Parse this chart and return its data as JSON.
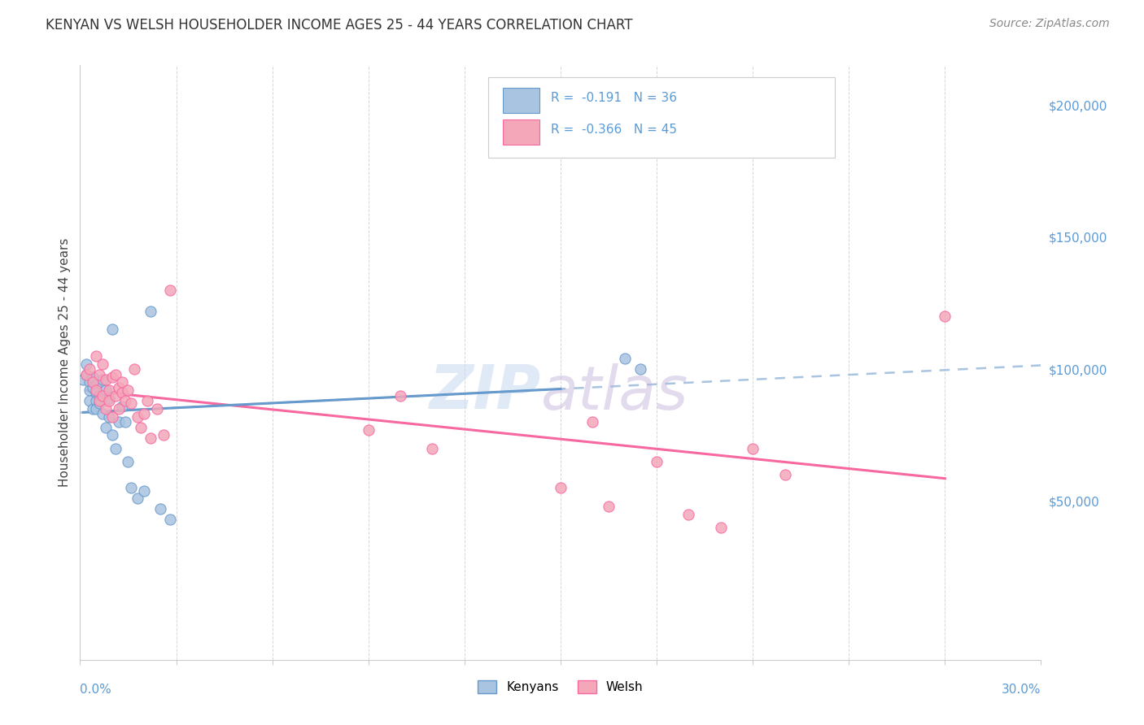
{
  "title": "KENYAN VS WELSH HOUSEHOLDER INCOME AGES 25 - 44 YEARS CORRELATION CHART",
  "source": "Source: ZipAtlas.com",
  "ylabel": "Householder Income Ages 25 - 44 years",
  "right_yticks": [
    "$200,000",
    "$150,000",
    "$100,000",
    "$50,000"
  ],
  "right_ytick_vals": [
    200000,
    150000,
    100000,
    50000
  ],
  "color_kenyan": "#a8c4e0",
  "color_welsh": "#f4a7b9",
  "color_kenyan_edge": "#6699cc",
  "color_welsh_edge": "#f768a1",
  "kenyan_x": [
    0.001,
    0.002,
    0.002,
    0.003,
    0.003,
    0.003,
    0.004,
    0.004,
    0.004,
    0.005,
    0.005,
    0.005,
    0.005,
    0.006,
    0.006,
    0.007,
    0.007,
    0.008,
    0.008,
    0.009,
    0.009,
    0.01,
    0.01,
    0.011,
    0.012,
    0.013,
    0.014,
    0.015,
    0.016,
    0.018,
    0.02,
    0.022,
    0.025,
    0.028,
    0.17,
    0.175
  ],
  "kenyan_y": [
    96000,
    98000,
    102000,
    95000,
    92000,
    88000,
    97000,
    93000,
    85000,
    94000,
    91000,
    88000,
    85000,
    90000,
    87000,
    96000,
    83000,
    92000,
    78000,
    89000,
    82000,
    115000,
    75000,
    70000,
    80000,
    86000,
    80000,
    65000,
    55000,
    51000,
    54000,
    122000,
    47000,
    43000,
    104000,
    100000
  ],
  "welsh_x": [
    0.002,
    0.003,
    0.004,
    0.005,
    0.005,
    0.006,
    0.006,
    0.007,
    0.007,
    0.008,
    0.008,
    0.009,
    0.009,
    0.01,
    0.01,
    0.011,
    0.011,
    0.012,
    0.012,
    0.013,
    0.013,
    0.014,
    0.015,
    0.016,
    0.017,
    0.018,
    0.019,
    0.02,
    0.021,
    0.022,
    0.024,
    0.026,
    0.028,
    0.09,
    0.1,
    0.11,
    0.15,
    0.16,
    0.165,
    0.18,
    0.19,
    0.2,
    0.21,
    0.22,
    0.27
  ],
  "welsh_y": [
    98000,
    100000,
    95000,
    105000,
    92000,
    98000,
    88000,
    102000,
    90000,
    96000,
    85000,
    92000,
    88000,
    97000,
    82000,
    90000,
    98000,
    93000,
    85000,
    91000,
    95000,
    88000,
    92000,
    87000,
    100000,
    82000,
    78000,
    83000,
    88000,
    74000,
    85000,
    75000,
    130000,
    77000,
    90000,
    70000,
    55000,
    80000,
    48000,
    65000,
    45000,
    40000,
    70000,
    60000,
    120000
  ],
  "xlim": [
    0.0,
    0.3
  ],
  "ylim": [
    -10000,
    215000
  ]
}
